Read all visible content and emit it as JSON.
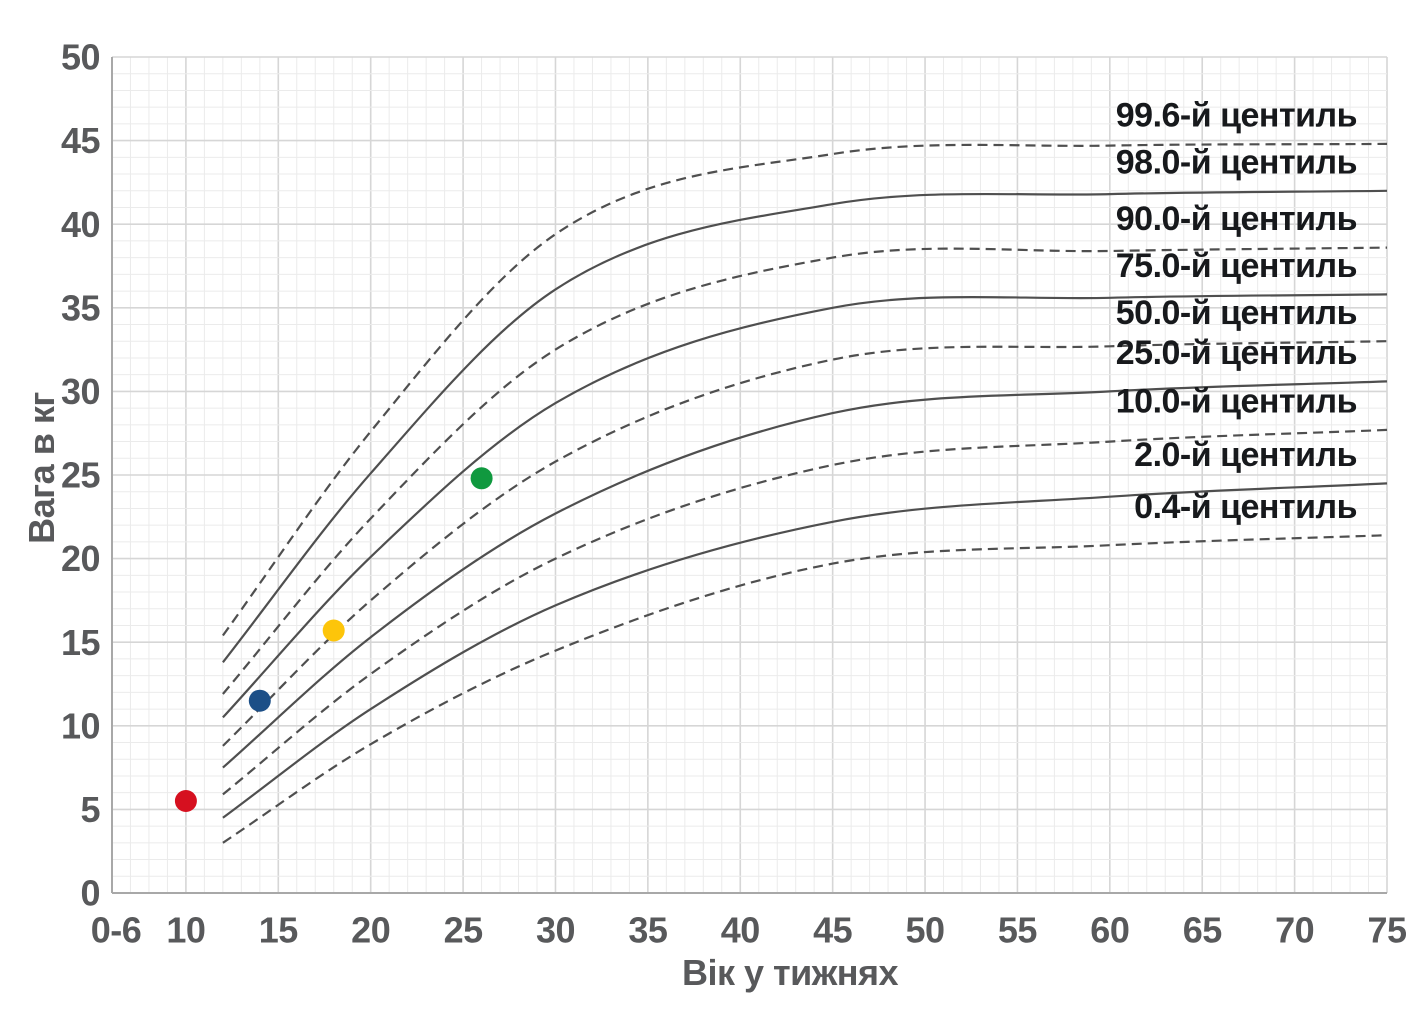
{
  "chart_data": {
    "type": "line",
    "title": "",
    "xlabel": "Вік у тижнях",
    "ylabel": "Вага в кг",
    "xlim_weeks": [
      6,
      75
    ],
    "ylim": [
      0,
      50
    ],
    "grid": {
      "minor_step": 1,
      "major_step": 5,
      "grid_on": true
    },
    "x_ticks": [
      {
        "label": "0-6",
        "week": 6
      },
      {
        "label": "10",
        "week": 10
      },
      {
        "label": "15",
        "week": 15
      },
      {
        "label": "20",
        "week": 20
      },
      {
        "label": "25",
        "week": 25
      },
      {
        "label": "30",
        "week": 30
      },
      {
        "label": "35",
        "week": 35
      },
      {
        "label": "40",
        "week": 40
      },
      {
        "label": "45",
        "week": 45
      },
      {
        "label": "50",
        "week": 50
      },
      {
        "label": "55",
        "week": 55
      },
      {
        "label": "60",
        "week": 60
      },
      {
        "label": "65",
        "week": 65
      },
      {
        "label": "70",
        "week": 70
      },
      {
        "label": "75",
        "week": 75
      }
    ],
    "y_ticks": [
      0,
      5,
      10,
      15,
      20,
      25,
      30,
      35,
      40,
      45,
      50
    ],
    "legend_position": "right-inside",
    "sample_weeks": [
      12,
      20,
      30,
      45,
      60,
      75
    ],
    "centiles": [
      {
        "label": "99.6-й центиль",
        "style": "dashed",
        "values_kg": [
          15.4,
          27.6,
          39.4,
          44.2,
          44.7,
          44.8
        ]
      },
      {
        "label": "98.0-й центиль",
        "style": "solid",
        "values_kg": [
          13.8,
          25.1,
          36.1,
          41.2,
          41.8,
          42.0
        ]
      },
      {
        "label": "90.0-й центиль",
        "style": "dashed",
        "values_kg": [
          11.9,
          22.4,
          32.5,
          38.0,
          38.4,
          38.6
        ]
      },
      {
        "label": "75.0-й центиль",
        "style": "solid",
        "values_kg": [
          10.5,
          20.1,
          29.3,
          35.0,
          35.6,
          35.8
        ]
      },
      {
        "label": "50.0-й центиль",
        "style": "dashed",
        "values_kg": [
          8.8,
          17.5,
          25.8,
          31.9,
          32.7,
          33.0
        ]
      },
      {
        "label": "25.0-й центиль",
        "style": "solid",
        "values_kg": [
          7.5,
          15.3,
          22.7,
          28.7,
          30.0,
          30.6
        ]
      },
      {
        "label": "10.0-й центиль",
        "style": "dashed",
        "values_kg": [
          5.9,
          13.1,
          20.0,
          25.6,
          27.0,
          27.7
        ]
      },
      {
        "label": "2.0-й центиль",
        "style": "solid",
        "values_kg": [
          4.5,
          11.0,
          17.2,
          22.2,
          23.7,
          24.5
        ]
      },
      {
        "label": "0.4-й центиль",
        "style": "dashed",
        "values_kg": [
          3.0,
          8.9,
          14.5,
          19.7,
          20.8,
          21.4
        ]
      }
    ],
    "points": [
      {
        "name": "point-red",
        "week": 10,
        "kg": 5.5,
        "color": "#d6101f"
      },
      {
        "name": "point-blue",
        "week": 14,
        "kg": 11.5,
        "color": "#1c4f87"
      },
      {
        "name": "point-yellow",
        "week": 18,
        "kg": 15.7,
        "color": "#fdc50a"
      },
      {
        "name": "point-green",
        "week": 26,
        "kg": 24.8,
        "color": "#10993f"
      }
    ],
    "colors": {
      "curve": "#4f4f4f",
      "grid_minor": "#ebebeb",
      "grid_major": "#d6d6d6",
      "axis_line": "#a8a8a8",
      "tick_text": "#58595b",
      "legend_text": "#17191c",
      "background": "#ffffff"
    }
  }
}
